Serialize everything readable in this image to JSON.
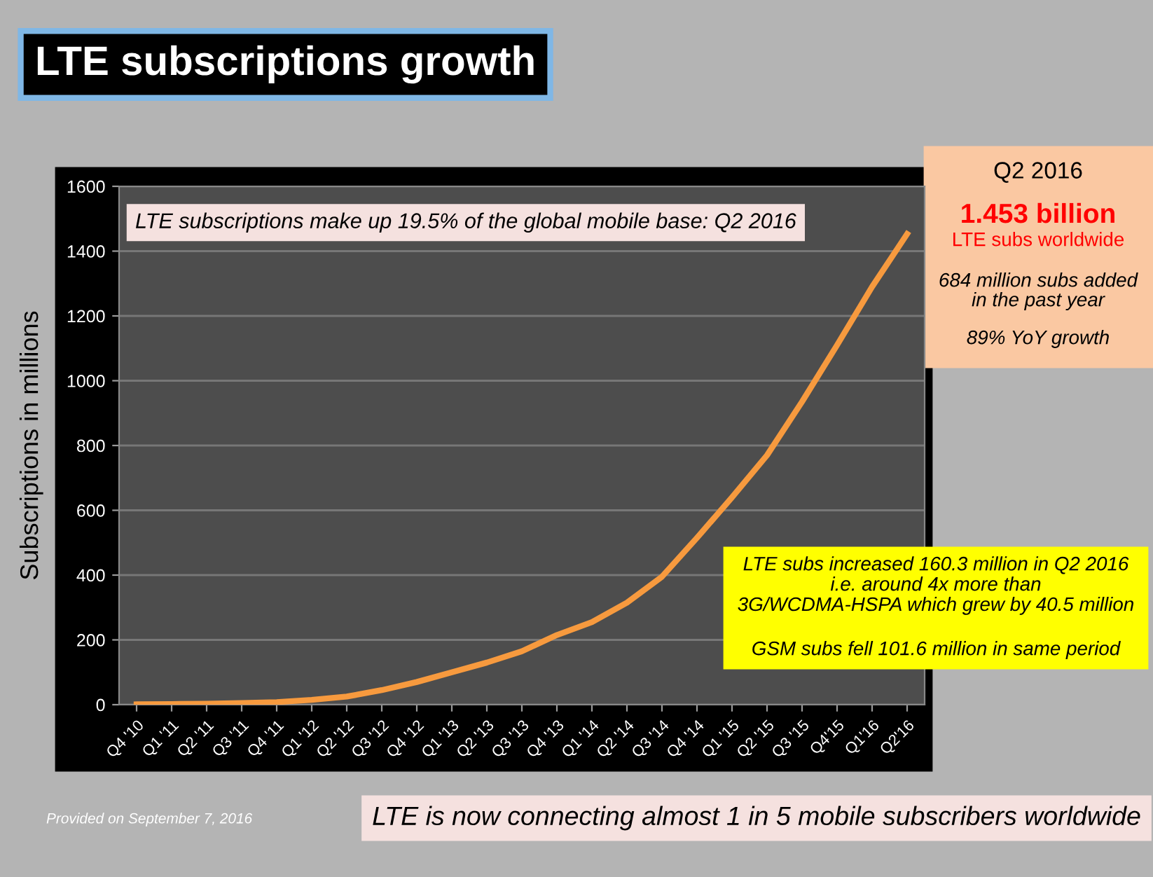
{
  "chart_data": {
    "type": "line",
    "title": "LTE subscriptions growth",
    "ylabel": "Subscriptions in millions",
    "categories": [
      "Q4 '10",
      "Q1 '11",
      "Q2 '11",
      "Q3 '11",
      "Q4 '11",
      "Q1 '12",
      "Q2 '12",
      "Q3 '12",
      "Q4 '12",
      "Q1 '13",
      "Q2 '13",
      "Q3 '13",
      "Q4 '13",
      "Q1 '14",
      "Q2 '14",
      "Q3 '14",
      "Q4 '14",
      "Q1 '15",
      "Q2 '15",
      "Q3 '15",
      "Q4'15",
      "Q1'16",
      "Q2'16"
    ],
    "series": [
      {
        "color": "#f79a3e",
        "values": [
          1,
          2,
          3,
          5,
          8,
          15,
          25,
          45,
          70,
          100,
          130,
          165,
          215,
          255,
          315,
          395,
          515,
          640,
          770,
          935,
          1110,
          1290,
          1453
        ]
      }
    ],
    "ylim": [
      0,
      1600
    ],
    "yticks": [
      0,
      200,
      400,
      600,
      800,
      1000,
      1200,
      1400,
      1600
    ],
    "grid": "y",
    "legend": false,
    "annotations": [
      "LTE subscriptions make up 19.5% of the global mobile base: Q2 2016",
      "Q2 2016",
      "1.453 billion",
      "LTE subs worldwide",
      "684 million subs added\nin the past year",
      "89% YoY growth",
      "LTE subs increased 160.3 million in Q2 2016\ni.e. around 4x more than\n3G/WCDMA-HSPA which grew by 40.5 million",
      "GSM subs fell 101.6 million in same period",
      "Provided on September 7, 2016",
      "LTE is now connecting almost 1 in 5 mobile subscribers worldwide"
    ]
  }
}
